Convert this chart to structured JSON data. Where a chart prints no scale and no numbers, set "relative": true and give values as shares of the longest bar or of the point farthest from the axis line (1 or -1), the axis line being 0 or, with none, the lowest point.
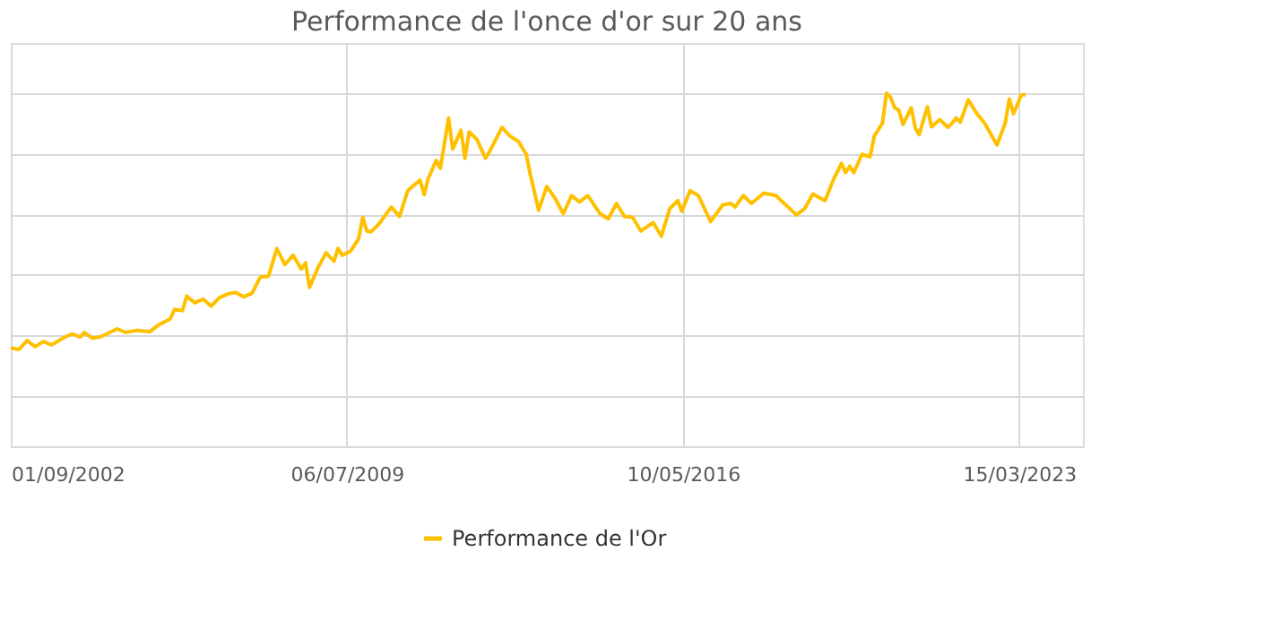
{
  "chart_data": {
    "type": "line",
    "title": "Performance de l'once d'or sur 20 ans",
    "relative": true,
    "grid": true,
    "legend": "bottom",
    "marker": "none",
    "line_style": "solid",
    "xlim": [
      "2002-09-01",
      "2024-07-01"
    ],
    "xticks": [
      {
        "value": "2002-09-01",
        "label": "01/09/2002"
      },
      {
        "value": "2009-07-06",
        "label": "06/07/2009"
      },
      {
        "value": "2016-05-10",
        "label": "10/05/2016"
      },
      {
        "value": "2023-03-15",
        "label": "15/03/2023"
      }
    ],
    "x": [
      "2002-09",
      "2002-11",
      "2003-01",
      "2003-03",
      "2003-05",
      "2003-07",
      "2003-10",
      "2003-12",
      "2004-02",
      "2004-03",
      "2004-05",
      "2004-07",
      "2004-11",
      "2005-01",
      "2005-04",
      "2005-07",
      "2005-09",
      "2005-12",
      "2006-01",
      "2006-03",
      "2006-04",
      "2006-06",
      "2006-08",
      "2006-10",
      "2006-12",
      "2007-02",
      "2007-04",
      "2007-06",
      "2007-08",
      "2007-10",
      "2007-12",
      "2008-02",
      "2008-04",
      "2008-06",
      "2008-08",
      "2008-09",
      "2008-10",
      "2008-12",
      "2009-02",
      "2009-04",
      "2009-05",
      "2009-06",
      "2009-08",
      "2009-10",
      "2009-11",
      "2009-12",
      "2010-01",
      "2010-03",
      "2010-06",
      "2010-08",
      "2010-10",
      "2011-01",
      "2011-02",
      "2011-03",
      "2011-05",
      "2011-06",
      "2011-08",
      "2011-09",
      "2011-11",
      "2011-12",
      "2012-01",
      "2012-03",
      "2012-05",
      "2012-06",
      "2012-09",
      "2012-11",
      "2013-01",
      "2013-03",
      "2013-04",
      "2013-06",
      "2013-08",
      "2013-10",
      "2013-12",
      "2014-02",
      "2014-04",
      "2014-06",
      "2014-09",
      "2014-11",
      "2015-01",
      "2015-03",
      "2015-05",
      "2015-07",
      "2015-10",
      "2015-12",
      "2016-02",
      "2016-04",
      "2016-05",
      "2016-07",
      "2016-09",
      "2016-12",
      "2017-03",
      "2017-05",
      "2017-06",
      "2017-08",
      "2017-10",
      "2018-01",
      "2018-04",
      "2018-06",
      "2018-09",
      "2018-11",
      "2019-01",
      "2019-04",
      "2019-06",
      "2019-08",
      "2019-09",
      "2019-10",
      "2019-11",
      "2020-01",
      "2020-03",
      "2020-04",
      "2020-06",
      "2020-07",
      "2020-08",
      "2020-09",
      "2020-10",
      "2020-11",
      "2021-01",
      "2021-02",
      "2021-03",
      "2021-05",
      "2021-06",
      "2021-08",
      "2021-10",
      "2021-11",
      "2021-12",
      "2022-01",
      "2022-03",
      "2022-05",
      "2022-07",
      "2022-10",
      "2022-12",
      "2023-01",
      "2023-02",
      "2023-04",
      "2023-05"
    ],
    "series": [
      {
        "name": "Performance de l'Or",
        "color": "#ffc000",
        "values": [
          0.159,
          0.154,
          0.183,
          0.163,
          0.18,
          0.169,
          0.193,
          0.205,
          0.195,
          0.21,
          0.191,
          0.196,
          0.222,
          0.21,
          0.217,
          0.212,
          0.234,
          0.255,
          0.286,
          0.282,
          0.33,
          0.308,
          0.32,
          0.297,
          0.325,
          0.337,
          0.342,
          0.328,
          0.34,
          0.393,
          0.396,
          0.487,
          0.434,
          0.465,
          0.419,
          0.44,
          0.359,
          0.422,
          0.473,
          0.445,
          0.487,
          0.465,
          0.478,
          0.519,
          0.59,
          0.545,
          0.542,
          0.568,
          0.624,
          0.593,
          0.678,
          0.713,
          0.665,
          0.716,
          0.778,
          0.752,
          0.918,
          0.815,
          0.878,
          0.785,
          0.872,
          0.846,
          0.785,
          0.807,
          0.887,
          0.858,
          0.841,
          0.798,
          0.73,
          0.614,
          0.692,
          0.653,
          0.602,
          0.662,
          0.641,
          0.662,
          0.602,
          0.585,
          0.636,
          0.593,
          0.59,
          0.545,
          0.573,
          0.528,
          0.619,
          0.645,
          0.61,
          0.678,
          0.662,
          0.576,
          0.631,
          0.636,
          0.624,
          0.662,
          0.636,
          0.67,
          0.662,
          0.636,
          0.598,
          0.619,
          0.667,
          0.645,
          0.713,
          0.768,
          0.738,
          0.759,
          0.738,
          0.798,
          0.79,
          0.858,
          0.901,
          1.0,
          0.986,
          0.952,
          0.944,
          0.897,
          0.952,
          0.884,
          0.863,
          0.955,
          0.889,
          0.913,
          0.887,
          0.901,
          0.918,
          0.904,
          0.978,
          0.935,
          0.901,
          0.829,
          0.901,
          0.981,
          0.932,
          0.995,
          0.995
        ]
      }
    ]
  }
}
